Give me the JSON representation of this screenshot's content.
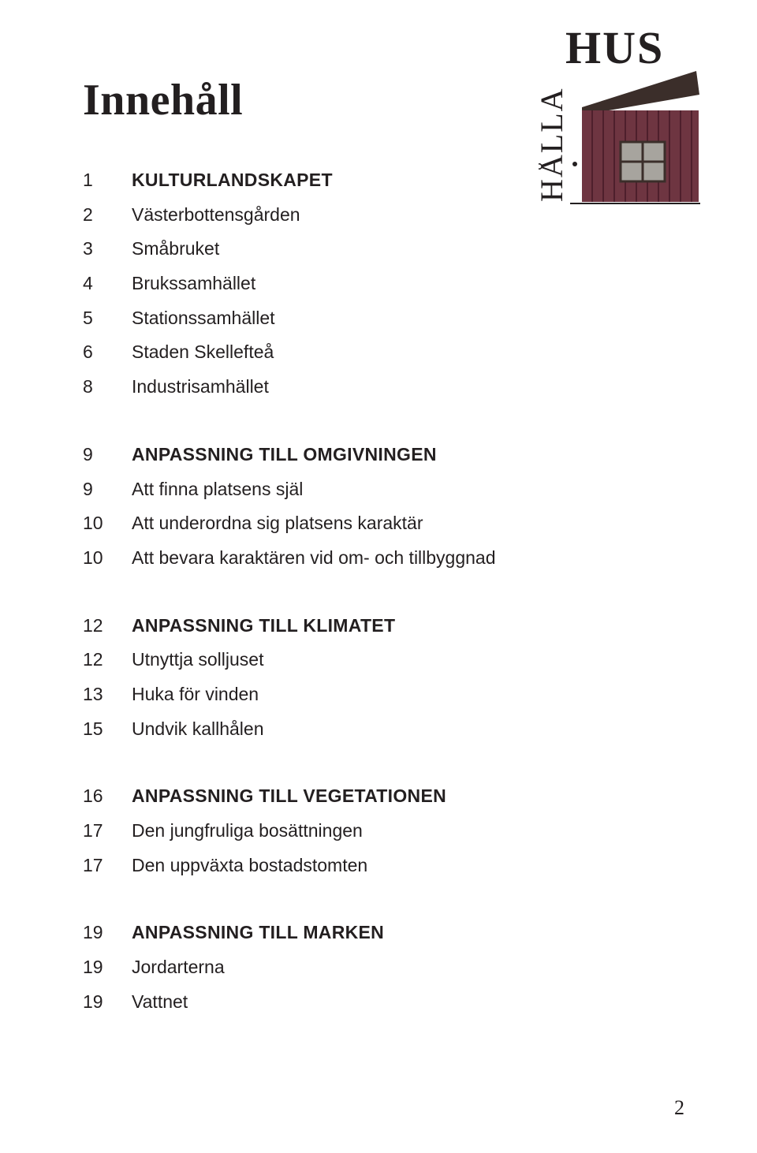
{
  "title": "Innehåll",
  "page_number": "2",
  "colors": {
    "text": "#231f20",
    "background": "#ffffff",
    "logo_wall": "#6E3541",
    "logo_wall_dark": "#4E1F2C",
    "logo_roof": "#3B2E2A",
    "logo_window_frame": "#A7A49E",
    "logo_text": "#231f20"
  },
  "typography": {
    "title_family": "Georgia serif",
    "title_size_pt": 42,
    "body_family": "Verdana sans-serif",
    "body_size_pt": 17,
    "line_height": 1.9
  },
  "logo": {
    "top_text": "HUS",
    "side_text": "HÅLLA"
  },
  "sections": [
    {
      "items": [
        {
          "num": "1",
          "text": "KULTURLANDSKAPET",
          "heading": true
        },
        {
          "num": "2",
          "text": "Västerbottensgården",
          "heading": false
        },
        {
          "num": "3",
          "text": "Småbruket",
          "heading": false
        },
        {
          "num": "4",
          "text": "Brukssamhället",
          "heading": false
        },
        {
          "num": "5",
          "text": "Stationssamhället",
          "heading": false
        },
        {
          "num": "6",
          "text": "Staden Skellefteå",
          "heading": false
        },
        {
          "num": "8",
          "text": "Industrisamhället",
          "heading": false
        }
      ]
    },
    {
      "items": [
        {
          "num": "9",
          "text": "ANPASSNING TILL OMGIVNINGEN",
          "heading": true
        },
        {
          "num": "9",
          "text": "Att finna platsens själ",
          "heading": false
        },
        {
          "num": "10",
          "text": "Att underordna sig platsens karaktär",
          "heading": false
        },
        {
          "num": "10",
          "text": "Att bevara karaktären vid om- och tillbyggnad",
          "heading": false
        }
      ]
    },
    {
      "items": [
        {
          "num": "12",
          "text": "ANPASSNING TILL KLIMATET",
          "heading": true
        },
        {
          "num": "12",
          "text": "Utnyttja solljuset",
          "heading": false
        },
        {
          "num": "13",
          "text": "Huka för vinden",
          "heading": false
        },
        {
          "num": "15",
          "text": "Undvik kallhålen",
          "heading": false
        }
      ]
    },
    {
      "items": [
        {
          "num": "16",
          "text": "ANPASSNING TILL VEGETATIONEN",
          "heading": true
        },
        {
          "num": "17",
          "text": "Den jungfruliga bosättningen",
          "heading": false
        },
        {
          "num": "17",
          "text": "Den uppväxta bostadstomten",
          "heading": false
        }
      ]
    },
    {
      "items": [
        {
          "num": "19",
          "text": "ANPASSNING TILL MARKEN",
          "heading": true
        },
        {
          "num": "19",
          "text": "Jordarterna",
          "heading": false
        },
        {
          "num": "19",
          "text": "Vattnet",
          "heading": false
        }
      ]
    }
  ]
}
